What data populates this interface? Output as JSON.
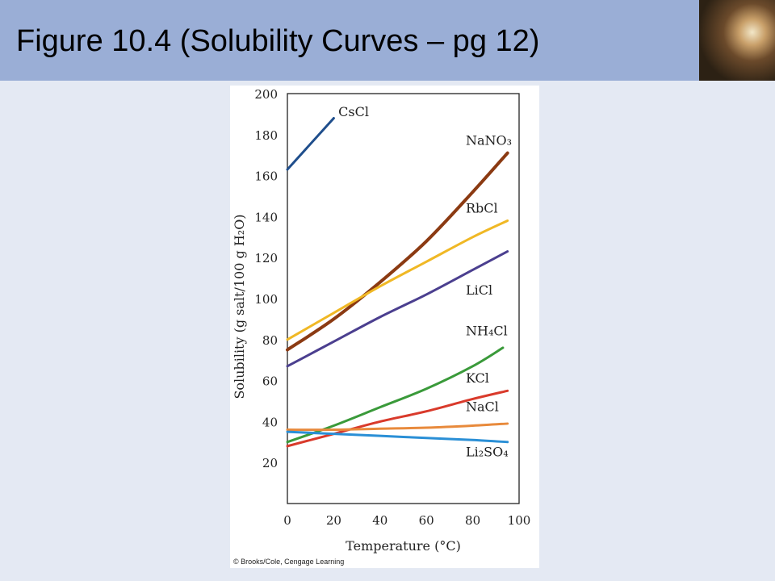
{
  "slide": {
    "title": "Figure 10.4 (Solubility Curves – pg 12)"
  },
  "decoration": {
    "photo_icon": "crystal-photo"
  },
  "figure": {
    "copyright": "© Brooks/Cole, Cengage Learning"
  },
  "chart_data": {
    "type": "line",
    "title": "",
    "xlabel": "Temperature (°C)",
    "ylabel": "Solubility (g salt/100 g H₂O)",
    "xlim": [
      0,
      100
    ],
    "ylim": [
      0,
      200
    ],
    "xticks": [
      0,
      20,
      40,
      60,
      80,
      100
    ],
    "yticks": [
      20,
      40,
      60,
      80,
      100,
      120,
      140,
      160,
      180,
      200
    ],
    "grid": false,
    "legend": "labels at line ends",
    "series": [
      {
        "name": "CsCl",
        "color": "#1f4e8c",
        "x": [
          0,
          20
        ],
        "y": [
          163,
          188
        ]
      },
      {
        "name": "NaNO₃",
        "color": "#8b3a12",
        "x": [
          0,
          20,
          40,
          60,
          80,
          95
        ],
        "y": [
          75,
          90,
          108,
          128,
          152,
          171
        ]
      },
      {
        "name": "RbCl",
        "color": "#f0b825",
        "x": [
          0,
          20,
          40,
          60,
          80,
          95
        ],
        "y": [
          80,
          93,
          106,
          118,
          130,
          138
        ]
      },
      {
        "name": "LiCl",
        "color": "#4b3f8f",
        "x": [
          0,
          20,
          40,
          60,
          80,
          95
        ],
        "y": [
          67,
          79,
          91,
          102,
          114,
          123
        ]
      },
      {
        "name": "NH₄Cl",
        "color": "#3a9a3a",
        "x": [
          0,
          20,
          40,
          60,
          80,
          93
        ],
        "y": [
          30,
          38,
          47,
          56,
          67,
          76
        ]
      },
      {
        "name": "KCl",
        "color": "#d93a2b",
        "x": [
          0,
          20,
          40,
          60,
          80,
          95
        ],
        "y": [
          28,
          34,
          40,
          45,
          51,
          55
        ]
      },
      {
        "name": "NaCl",
        "color": "#e88a3c",
        "x": [
          0,
          20,
          40,
          60,
          80,
          95
        ],
        "y": [
          36,
          36,
          36.5,
          37,
          38,
          39
        ]
      },
      {
        "name": "Li₂SO₄",
        "color": "#2a8fd6",
        "x": [
          0,
          20,
          40,
          60,
          80,
          95
        ],
        "y": [
          35,
          34,
          33,
          32,
          31,
          30
        ]
      }
    ]
  }
}
